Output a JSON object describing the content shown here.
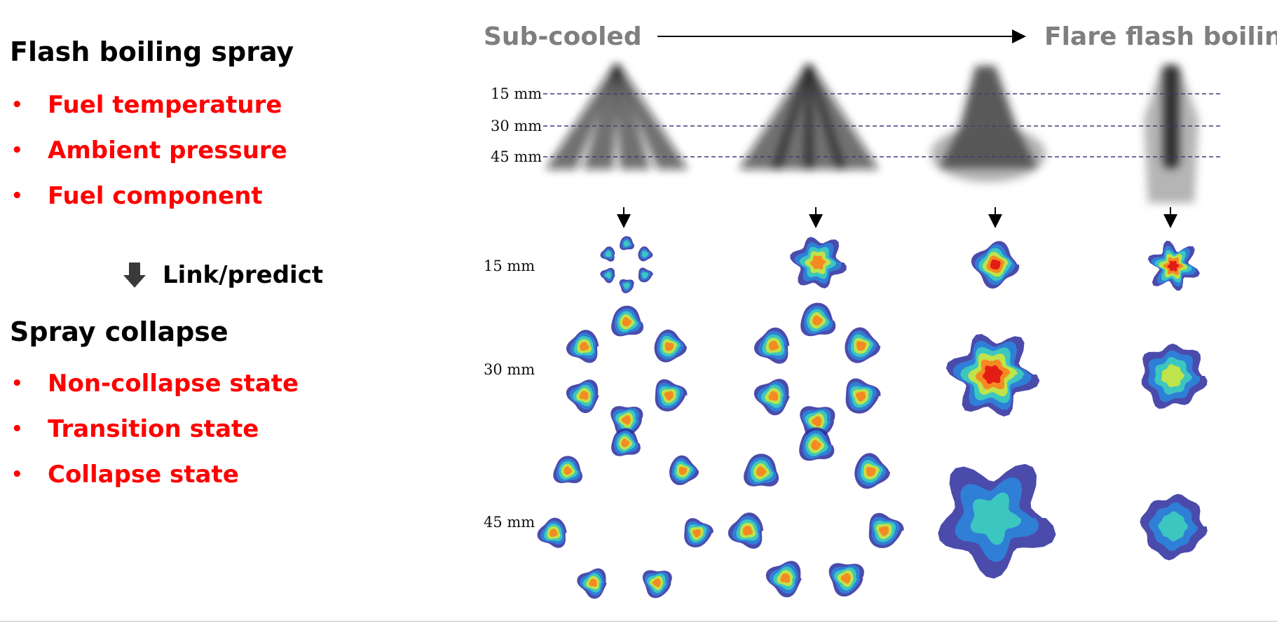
{
  "left_panel": {
    "section1": {
      "heading": "Flash boiling spray",
      "bullets": [
        "Fuel temperature",
        "Ambient pressure",
        "Fuel component"
      ]
    },
    "link_label": "Link/predict",
    "section2": {
      "heading": "Spray collapse",
      "bullets": [
        "Non-collapse state",
        "Transition state",
        "Collapse state"
      ]
    },
    "bullet_glyph": "•"
  },
  "figure": {
    "left_title": "Sub-cooled",
    "right_title": "Flare flash boiling",
    "side_view_labels": [
      "15 mm",
      "30 mm",
      "45 mm"
    ],
    "cross_section_labels": [
      "15 mm",
      "30 mm",
      "45 mm"
    ],
    "columns": 4
  },
  "colors": {
    "heading": "#000000",
    "bullet_text": "#ff0000",
    "figure_title": "#7f7f7f",
    "dashed_line": "#3a3f7a",
    "cross_section_scale": [
      "#2b2b9e",
      "#2f7fd6",
      "#3cc6c0",
      "#bfe34a",
      "#f6e03a",
      "#f58a23",
      "#e31d16",
      "#8c0a0a"
    ]
  },
  "icons": {
    "link_arrow": "down-arrow-icon",
    "direction_arrow": "right-arrow-icon"
  }
}
